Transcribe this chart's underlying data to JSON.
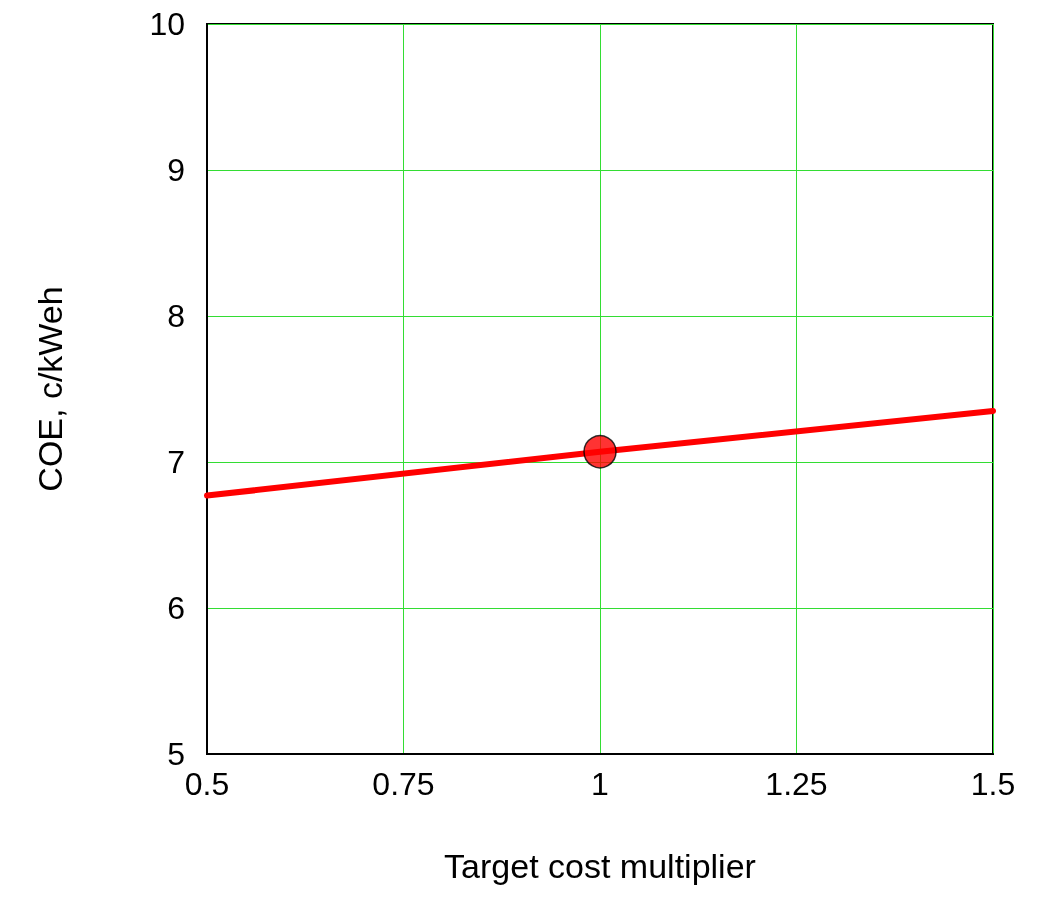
{
  "chart_data": {
    "type": "line",
    "xlabel": "Target cost multiplier",
    "ylabel": "COE, c/kWeh",
    "series": [
      {
        "x": [
          0.5,
          1,
          1.5
        ],
        "values": [
          6.77,
          7.07,
          7.35
        ],
        "color": "#ff0000",
        "marker": "none"
      },
      {
        "type": "scatter",
        "x": [
          1
        ],
        "values": [
          7.07
        ],
        "color": "#ff0000",
        "marker": "circle"
      }
    ],
    "xlim": [
      0.5,
      1.5
    ],
    "xticks": [
      0.5,
      0.75,
      1,
      1.25,
      1.5
    ],
    "ylim": [
      5,
      10
    ],
    "yticks": [
      5,
      6,
      7,
      8,
      9,
      10
    ],
    "grid": true
  }
}
